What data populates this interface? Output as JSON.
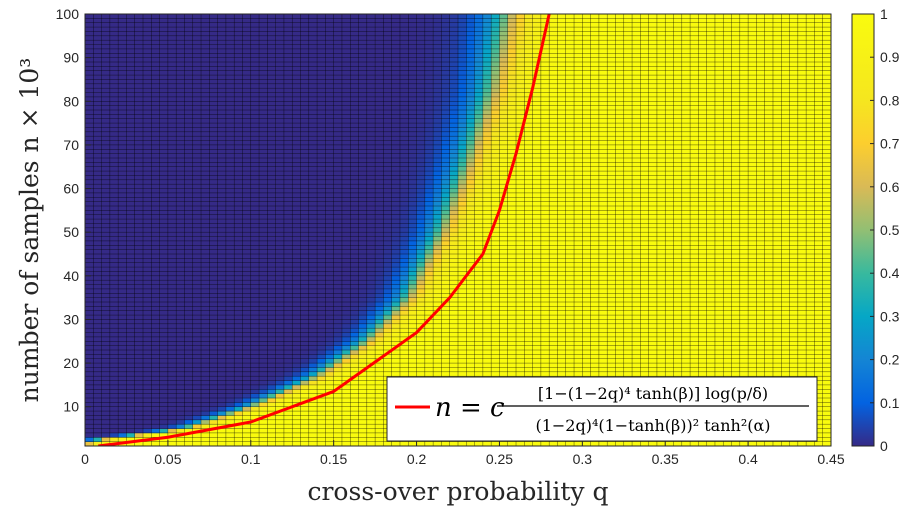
{
  "chart_data": {
    "type": "heatmap",
    "title": "",
    "xlabel": "cross-over probability q",
    "ylabel": "number of samples n × 10³",
    "xlim": [
      0,
      0.45
    ],
    "ylim": [
      1,
      100
    ],
    "x_ticks": [
      "0",
      "0.05",
      "0.1",
      "0.15",
      "0.2",
      "0.25",
      "0.3",
      "0.35",
      "0.4",
      "0.45"
    ],
    "x_tick_values": [
      0,
      0.05,
      0.1,
      0.15,
      0.2,
      0.25,
      0.3,
      0.35,
      0.4,
      0.45
    ],
    "y_ticks": [
      "10",
      "20",
      "30",
      "40",
      "50",
      "60",
      "70",
      "80",
      "90",
      "100"
    ],
    "y_tick_values": [
      10,
      20,
      30,
      40,
      50,
      60,
      70,
      80,
      90,
      100
    ],
    "grid": {
      "x_step": 0.005,
      "y_step": 1
    },
    "colorbar": {
      "range": [
        0,
        1
      ],
      "ticks": [
        "0",
        "0.1",
        "0.2",
        "0.3",
        "0.4",
        "0.5",
        "0.6",
        "0.7",
        "0.8",
        "0.9",
        "1"
      ],
      "tick_values": [
        0,
        0.1,
        0.2,
        0.3,
        0.4,
        0.5,
        0.6,
        0.7,
        0.8,
        0.9,
        1
      ],
      "colormap": "parula"
    },
    "transition_boundary": {
      "description": "heatmap value ~0 for low q, rising to ~1 past a q threshold that grows with n",
      "points_q": [
        0.0,
        0.06,
        0.1,
        0.14,
        0.17,
        0.195,
        0.215,
        0.23,
        0.245,
        0.255
      ],
      "points_n": [
        2,
        5,
        10,
        17,
        25,
        35,
        50,
        65,
        82,
        100
      ]
    },
    "series": [
      {
        "name": "n = c [1−(1−2q)⁴ tanh(β)] log(p/δ) / ((1−2q)⁴ (1−tanh(β))² tanh²(α))",
        "color": "#ff0000",
        "x": [
          0.008,
          0.05,
          0.1,
          0.15,
          0.2,
          0.22,
          0.24,
          0.25,
          0.26,
          0.27,
          0.28
        ],
        "y": [
          1,
          3,
          6.5,
          13.5,
          27,
          35,
          45,
          55,
          68,
          83,
          100
        ]
      }
    ],
    "legend": {
      "placement": "bottom-right",
      "lhs": "n = c",
      "numerator": "[1−(1−2q)⁴ tanh(β)] log(p/δ)",
      "denominator": "(1−2q)⁴(1−tanh(β))² tanh²(α)"
    }
  }
}
